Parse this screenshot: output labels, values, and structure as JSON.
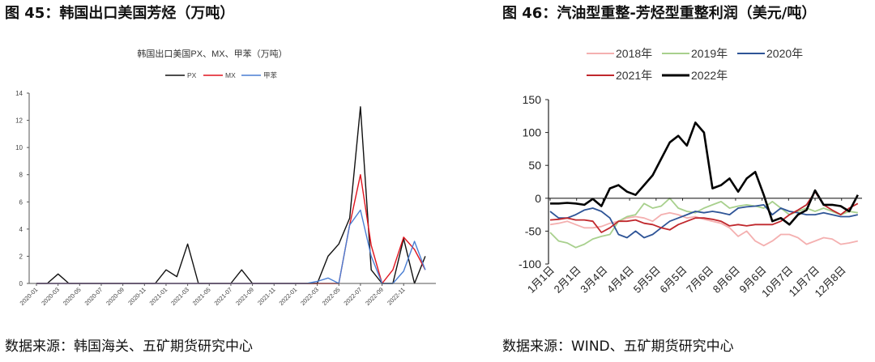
{
  "figures": [
    {
      "title": "图 45：韩国出口美国芳烃（万吨）",
      "source": "数据来源：韩国海关、五矿期货研究中心"
    },
    {
      "title": "图 46：汽油型重整-芳烃型重整利润（美元/吨）",
      "source": "数据来源：WIND、五矿期货研究中心"
    }
  ],
  "chart_data": [
    {
      "type": "line",
      "title": "韩国出口美国PX、MX、甲苯（万吨）",
      "xlabel": "",
      "ylabel": "",
      "x": [
        "2020-01",
        "2020-02",
        "2020-03",
        "2020-04",
        "2020-05",
        "2020-06",
        "2020-07",
        "2020-08",
        "2020-09",
        "2020-10",
        "2020-11",
        "2020-12",
        "2021-01",
        "2021-02",
        "2021-03",
        "2021-04",
        "2021-05",
        "2021-06",
        "2021-07",
        "2021-08",
        "2021-09",
        "2021-10",
        "2021-11",
        "2021-12",
        "2022-01",
        "2022-02",
        "2022-03",
        "2022-04",
        "2022-05",
        "2022-06",
        "2022-07",
        "2022-08",
        "2022-09",
        "2022-10",
        "2022-11",
        "2022-12",
        "2023-01"
      ],
      "tick_labels": [
        "2020-01",
        "2020-03",
        "2020-05",
        "2020-07",
        "2020-09",
        "2020-11",
        "2021-01",
        "2021-03",
        "2021-05",
        "2021-07",
        "2021-09",
        "2021-11",
        "2022-01",
        "2022-03",
        "2022-05",
        "2022-07",
        "2022-09",
        "2022-11"
      ],
      "ylim": [
        0,
        14
      ],
      "yticks": [
        0,
        2,
        4,
        6,
        8,
        10,
        12,
        14
      ],
      "grid": false,
      "legend_position": "top",
      "series": [
        {
          "name": "PX",
          "color": "#111111",
          "values": [
            0,
            0,
            0.7,
            0,
            0,
            0,
            0,
            0,
            0,
            0,
            0,
            0,
            1,
            0.5,
            2.9,
            0,
            0,
            0,
            0,
            1,
            0,
            0,
            0,
            0,
            0,
            0,
            0,
            2,
            2.9,
            4.8,
            13,
            1,
            0,
            0,
            3.3,
            0,
            2
          ]
        },
        {
          "name": "MX",
          "color": "#e0141e",
          "values": [
            0,
            0,
            0,
            0,
            0,
            0,
            0,
            0,
            0,
            0,
            0,
            0,
            0,
            0,
            0,
            0,
            0,
            0,
            0,
            0,
            0,
            0,
            0,
            0,
            0,
            0,
            0,
            0,
            0,
            4.3,
            8,
            2.8,
            0,
            1,
            3.4,
            2.5,
            1
          ]
        },
        {
          "name": "甲苯",
          "color": "#4a7fd4",
          "values": [
            0,
            0,
            0,
            0,
            0,
            0,
            0,
            0,
            0,
            0,
            0,
            0,
            0,
            0,
            0,
            0,
            0,
            0,
            0,
            0,
            0,
            0,
            0,
            0,
            0,
            0,
            0.15,
            0.4,
            0,
            4.3,
            5.4,
            2,
            0,
            0,
            0.9,
            3.1,
            1
          ]
        }
      ]
    },
    {
      "type": "line",
      "title": "",
      "xlabel": "",
      "ylabel": "",
      "x": [
        "01-01",
        "01-11",
        "01-21",
        "01-31",
        "02-10",
        "02-20",
        "03-02",
        "03-12",
        "03-22",
        "04-01",
        "04-11",
        "04-21",
        "05-01",
        "05-11",
        "05-21",
        "05-31",
        "06-10",
        "06-20",
        "06-30",
        "07-10",
        "07-20",
        "07-30",
        "08-09",
        "08-19",
        "08-29",
        "09-08",
        "09-18",
        "09-28",
        "10-08",
        "10-18",
        "10-28",
        "11-07",
        "11-17",
        "11-27",
        "12-07",
        "12-17",
        "12-27"
      ],
      "ticks": [
        {
          "date": "01-01",
          "label": "1月1日"
        },
        {
          "date": "02-01",
          "label": "2月1日"
        },
        {
          "date": "03-04",
          "label": "3月4日"
        },
        {
          "date": "04-04",
          "label": "4月4日"
        },
        {
          "date": "05-05",
          "label": "5月5日"
        },
        {
          "date": "06-05",
          "label": "6月5日"
        },
        {
          "date": "07-06",
          "label": "7月6日"
        },
        {
          "date": "08-06",
          "label": "8月6日"
        },
        {
          "date": "09-06",
          "label": "9月6日"
        },
        {
          "date": "10-07",
          "label": "10月7日"
        },
        {
          "date": "11-07",
          "label": "11月7日"
        },
        {
          "date": "12-08",
          "label": "12月8日"
        }
      ],
      "ylim": [
        -100,
        150
      ],
      "yticks": [
        -100,
        -50,
        0,
        50,
        100,
        150
      ],
      "grid": false,
      "legend_position": "top",
      "series": [
        {
          "name": "2018年",
          "color": "#f4b0b0",
          "values": [
            -40,
            -38,
            -35,
            -40,
            -45,
            -45,
            -43,
            -38,
            -35,
            -30,
            -28,
            -30,
            -35,
            -25,
            -22,
            -25,
            -30,
            -28,
            -32,
            -35,
            -38,
            -45,
            -58,
            -50,
            -65,
            -72,
            -65,
            -55,
            -55,
            -60,
            -70,
            -65,
            -60,
            -62,
            -70,
            -68,
            -65
          ]
        },
        {
          "name": "2019年",
          "color": "#a8d08d",
          "values": [
            -52,
            -65,
            -68,
            -75,
            -70,
            -62,
            -58,
            -55,
            -35,
            -28,
            -25,
            -8,
            -15,
            -12,
            0,
            -15,
            -20,
            -22,
            -15,
            -10,
            -5,
            -15,
            -12,
            -10,
            -12,
            -15,
            -5,
            -15,
            -25,
            -20,
            -15,
            -20,
            -15,
            -20,
            -25,
            -20,
            -22
          ]
        },
        {
          "name": "2020年",
          "color": "#2f5597",
          "values": [
            -20,
            -30,
            -30,
            -25,
            -18,
            -15,
            -20,
            -30,
            -55,
            -60,
            -50,
            -60,
            -55,
            -45,
            -35,
            -30,
            -25,
            -20,
            -22,
            -20,
            -22,
            -25,
            -15,
            -13,
            -12,
            -10,
            -25,
            -15,
            -20,
            -22,
            -25,
            -25,
            -22,
            -25,
            -28,
            -28,
            -25
          ]
        },
        {
          "name": "2021年",
          "color": "#c0282d",
          "values": [
            -33,
            -32,
            -30,
            -33,
            -33,
            -35,
            -52,
            -45,
            -35,
            -35,
            -33,
            -38,
            -40,
            -45,
            -48,
            -40,
            -35,
            -30,
            -30,
            -32,
            -35,
            -42,
            -40,
            -42,
            -40,
            -40,
            -40,
            -35,
            -25,
            -18,
            -10,
            10,
            -10,
            -18,
            -25,
            -15,
            -8
          ]
        },
        {
          "name": "2022年",
          "color": "#000000",
          "values": [
            -8,
            -8,
            -7,
            -8,
            -10,
            -1,
            -12,
            15,
            20,
            10,
            5,
            20,
            35,
            60,
            85,
            95,
            80,
            115,
            100,
            15,
            20,
            30,
            10,
            30,
            40,
            5,
            -35,
            -30,
            -40,
            -25,
            -18,
            12,
            -10,
            -10,
            -12,
            -20,
            5
          ]
        }
      ]
    }
  ]
}
